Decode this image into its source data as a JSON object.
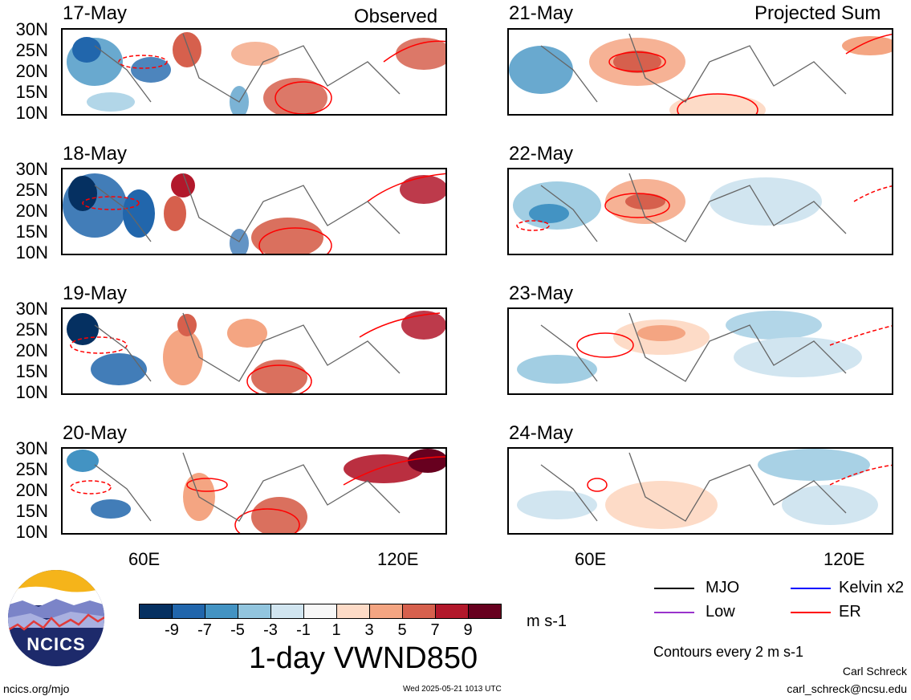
{
  "header": {
    "observed_label": "Observed",
    "projected_label": "Projected Sum"
  },
  "panels_left": [
    {
      "date": "17-May"
    },
    {
      "date": "18-May"
    },
    {
      "date": "19-May"
    },
    {
      "date": "20-May"
    }
  ],
  "panels_right": [
    {
      "date": "21-May"
    },
    {
      "date": "22-May"
    },
    {
      "date": "23-May"
    },
    {
      "date": "24-May"
    }
  ],
  "y_ticks": [
    "30N",
    "25N",
    "20N",
    "15N",
    "10N"
  ],
  "x_ticks": [
    "60E",
    "120E"
  ],
  "colorbar": {
    "colors": [
      "#053061",
      "#2166ac",
      "#4393c3",
      "#92c5de",
      "#d1e5f0",
      "#f7f7f7",
      "#fddbc7",
      "#f4a582",
      "#d6604d",
      "#b2182b",
      "#67001f"
    ],
    "labels": [
      "-9",
      "-7",
      "-5",
      "-3",
      "-1",
      "1",
      "3",
      "5",
      "7",
      "9"
    ],
    "units": "m s-1",
    "title": "1-day VWND850"
  },
  "legend": {
    "items": [
      {
        "label": "MJO",
        "color": "#000000"
      },
      {
        "label": "Kelvin x2",
        "color": "#0000ff"
      },
      {
        "label": "Low",
        "color": "#9933cc"
      },
      {
        "label": "ER",
        "color": "#ff0000"
      }
    ],
    "contours_note": "Contours every 2 m s-1"
  },
  "footer": {
    "logo_text": "NCICS",
    "url": "ncics.org/mjo",
    "timestamp": "Wed 2025-05-21 1013 UTC",
    "author": "Carl Schreck",
    "email": "carl_schreck@ncsu.edu"
  }
}
